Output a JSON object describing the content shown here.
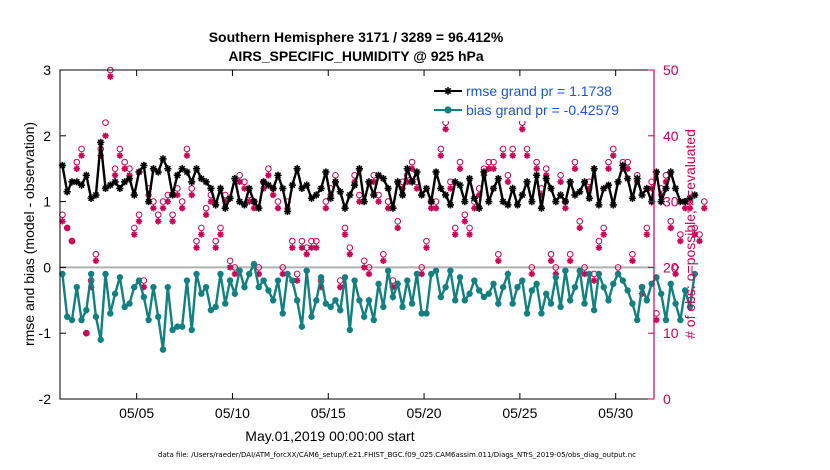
{
  "title_line1": "Southern Hemisphere 3171 / 3289 = 96.412%",
  "title_line2": "AIRS_SPECIFIC_HUMIDITY @ 925 hPa",
  "footer": "data file: /Users/raeder/DAI/ATM_forcXX/CAM6_setup/f.e21.FHIST_BGC.f09_025.CAM6assim.011/Diags_NTrS_2019-05/obs_diag_output.nc",
  "colors": {
    "rmse": "#000000",
    "bias": "#128080",
    "obs": "#cc0055",
    "zero": "#b0b0b0"
  },
  "chart_data": {
    "type": "line",
    "xlabel": "May.01,2019 00:00:00 start",
    "ylabel": "rmse and bias (model - observation)",
    "ylabel_right": "# of obs: o=possible; ×=evaluated",
    "xlim": [
      1.0,
      32.0
    ],
    "ylim": [
      -2,
      3
    ],
    "ylim_right": [
      0,
      50
    ],
    "x_ticks": [
      5,
      10,
      15,
      20,
      25,
      30
    ],
    "x_tick_labels": [
      "05/05",
      "05/10",
      "05/15",
      "05/20",
      "05/25",
      "05/30"
    ],
    "y_ticks": [
      -2,
      -1,
      0,
      1,
      2,
      3
    ],
    "y_tick_labels": [
      "-2",
      "-1",
      "0",
      "1",
      "2",
      "3"
    ],
    "y_ticks_right": [
      0,
      10,
      20,
      30,
      40,
      50
    ],
    "y_tick_labels_right": [
      "0",
      "10",
      "20",
      "30",
      "40",
      "50"
    ],
    "x_start": 1.125,
    "x_step": 0.25,
    "legend": {
      "position": "top-right",
      "entries": [
        "rmse grand pr = 1.1738",
        "bias grand pr = -0.42579"
      ]
    },
    "series": [
      {
        "name": "rmse grand pr = 1.1738",
        "style": "line-star",
        "values": [
          1.55,
          1.15,
          1.3,
          1.3,
          1.25,
          1.4,
          1.05,
          1.1,
          1.9,
          1.2,
          1.25,
          1.3,
          1.2,
          1.3,
          1.35,
          1.1,
          1.45,
          1.55,
          1.0,
          1.5,
          1.45,
          1.65,
          1.5,
          1.1,
          1.4,
          1.5,
          1.45,
          1.3,
          1.5,
          1.35,
          1.3,
          1.2,
          0.95,
          1.2,
          0.9,
          1.05,
          1.35,
          1.0,
          0.95,
          1.2,
          1.0,
          0.9,
          1.3,
          1.25,
          1.2,
          1.4,
          1.2,
          0.85,
          1.25,
          1.5,
          1.2,
          1.25,
          1.05,
          1.1,
          1.2,
          1.45,
          1.05,
          1.3,
          1.15,
          0.9,
          1.1,
          1.25,
          1.5,
          1.0,
          1.3,
          1.1,
          1.4,
          1.35,
          1.2,
          0.9,
          1.3,
          1.1,
          1.5,
          1.3,
          1.45,
          1.1,
          1.2,
          1.0,
          1.45,
          1.2,
          1.1,
          0.95,
          1.3,
          1.25,
          1.0,
          1.35,
          1.05,
          0.9,
          1.45,
          1.0,
          1.2,
          1.35,
          1.0,
          0.95,
          1.2,
          0.95,
          1.1,
          1.3,
          1.0,
          1.4,
          0.9,
          1.35,
          1.2,
          1.0,
          1.1,
          1.0,
          1.3,
          1.1,
          1.15,
          1.3,
          1.05,
          1.5,
          0.95,
          1.2,
          1.25,
          0.95,
          1.3,
          1.55,
          1.35,
          1.05,
          1.35,
          1.1,
          1.2,
          1.0,
          1.45,
          1.0,
          1.2,
          1.45,
          1.2,
          1.0,
          1.0,
          1.05,
          1.1
        ]
      },
      {
        "name": "bias grand pr = -0.42579",
        "style": "line-dot",
        "values": [
          -0.1,
          -0.75,
          -0.8,
          -0.3,
          -0.8,
          -0.65,
          -0.1,
          -0.75,
          -1.1,
          -0.1,
          -0.7,
          -0.4,
          -0.15,
          -0.6,
          -0.55,
          -0.3,
          -0.2,
          -0.45,
          -0.8,
          -0.3,
          -0.75,
          -1.25,
          -0.3,
          -0.95,
          -0.9,
          -0.9,
          -0.2,
          -0.95,
          -0.1,
          -0.4,
          -0.3,
          -0.65,
          -0.6,
          -0.1,
          -0.55,
          -0.2,
          -0.4,
          -0.05,
          -0.3,
          -0.1,
          0.05,
          -0.3,
          -0.2,
          -0.35,
          -0.5,
          -0.2,
          -0.7,
          -0.1,
          -0.2,
          -0.5,
          -0.9,
          -0.05,
          -0.75,
          -0.5,
          -0.15,
          -0.55,
          -0.6,
          -0.5,
          -0.65,
          -0.15,
          -0.95,
          -0.2,
          -0.5,
          -0.75,
          -0.5,
          -0.8,
          -0.25,
          -0.6,
          -0.05,
          -0.45,
          -0.25,
          -0.6,
          -0.2,
          -0.55,
          -0.1,
          -0.7,
          -0.7,
          -0.1,
          -0.05,
          -0.45,
          -0.3,
          -0.05,
          -0.5,
          -0.15,
          -0.5,
          -0.4,
          -0.2,
          -0.35,
          -0.45,
          -0.4,
          -0.25,
          -0.55,
          -0.3,
          -0.1,
          -0.55,
          -0.3,
          -0.2,
          -0.7,
          -0.35,
          -0.25,
          -0.7,
          -0.4,
          -0.55,
          -0.15,
          -0.6,
          -0.05,
          -0.5,
          -0.3,
          -0.05,
          -0.55,
          -0.1,
          -0.65,
          -0.1,
          -0.3,
          -0.5,
          -0.25,
          -0.1,
          -0.2,
          -0.35,
          -0.55,
          -0.8,
          -0.3,
          -0.5,
          -0.25,
          -0.15,
          -0.4,
          -0.8,
          -0.25,
          -0.55,
          -0.8,
          -0.35,
          -0.6,
          -0.1
        ]
      },
      {
        "name": "possible",
        "axis": "right",
        "style": "marker-o",
        "values": [
          28,
          26,
          24,
          36,
          38,
          10,
          18,
          22,
          38,
          42,
          50,
          35,
          38,
          36,
          35,
          26,
          28,
          18,
          32,
          30,
          28,
          30,
          31,
          28,
          32,
          30,
          38,
          32,
          24,
          26,
          29,
          31,
          24,
          26,
          31,
          21,
          20,
          34,
          33,
          31,
          30,
          20,
          33,
          35,
          32,
          30,
          20,
          30,
          24,
          19,
          24,
          23,
          24,
          24,
          18,
          30,
          32,
          34,
          18,
          26,
          23,
          34,
          31,
          21,
          20,
          34,
          31,
          22,
          30,
          18,
          27,
          33,
          34,
          36,
          33,
          20,
          24,
          30,
          30,
          38,
          42,
          33,
          26,
          36,
          28,
          26,
          30,
          32,
          35,
          36,
          36,
          22,
          38,
          34,
          38,
          44,
          42,
          38,
          20,
          36,
          32,
          35,
          22,
          20,
          34,
          30,
          22,
          36,
          27,
          20,
          33,
          19,
          24,
          26,
          36,
          38,
          20,
          36,
          36,
          22,
          34,
          17,
          26,
          33,
          13,
          32,
          34,
          27,
          20,
          25,
          30,
          30,
          26,
          25,
          30
        ]
      },
      {
        "name": "evaluated",
        "axis": "right",
        "style": "marker-x",
        "values": [
          27,
          26,
          24,
          35,
          37,
          10,
          17,
          21,
          37,
          40,
          49,
          34,
          37,
          35,
          34,
          25,
          27,
          17,
          31,
          29,
          27,
          29,
          30,
          27,
          31,
          29,
          37,
          31,
          23,
          25,
          28,
          30,
          23,
          25,
          30,
          20,
          19,
          33,
          32,
          30,
          29,
          19,
          32,
          34,
          31,
          29,
          19,
          29,
          23,
          18,
          23,
          22,
          23,
          23,
          17,
          29,
          31,
          33,
          17,
          25,
          22,
          33,
          30,
          20,
          19,
          33,
          30,
          21,
          29,
          17,
          26,
          32,
          33,
          35,
          32,
          19,
          23,
          29,
          29,
          37,
          41,
          32,
          25,
          35,
          27,
          25,
          29,
          31,
          34,
          35,
          35,
          21,
          37,
          33,
          37,
          43,
          41,
          37,
          19,
          35,
          31,
          34,
          21,
          19,
          33,
          29,
          21,
          35,
          26,
          19,
          32,
          18,
          23,
          25,
          35,
          37,
          19,
          35,
          35,
          21,
          33,
          16,
          25,
          32,
          12,
          31,
          33,
          26,
          19,
          24,
          29,
          29,
          25,
          24,
          29
        ]
      }
    ]
  }
}
